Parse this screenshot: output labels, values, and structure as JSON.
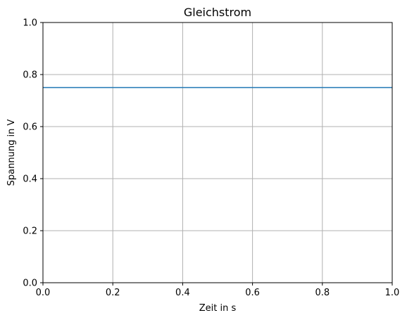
{
  "chart_data": {
    "type": "line",
    "title": "Gleichstrom",
    "xlabel": "Zeit in s",
    "ylabel": "Spannung in V",
    "xlim": [
      0.0,
      1.0
    ],
    "ylim": [
      0.0,
      1.0
    ],
    "xticks": [
      0.0,
      0.2,
      0.4,
      0.6,
      0.8,
      1.0
    ],
    "yticks": [
      0.0,
      0.2,
      0.4,
      0.6,
      0.8,
      1.0
    ],
    "xtick_labels": [
      "0.0",
      "0.2",
      "0.4",
      "0.6",
      "0.8",
      "1.0"
    ],
    "ytick_labels": [
      "0.0",
      "0.2",
      "0.4",
      "0.6",
      "0.8",
      "1.0"
    ],
    "grid": true,
    "series": [
      {
        "x": [
          0.0,
          1.0
        ],
        "y": [
          0.75,
          0.75
        ],
        "color": "#1f77b4"
      }
    ],
    "colors": {
      "grid": "#b0b0b0",
      "axes": "#000000",
      "background": "#ffffff"
    }
  }
}
